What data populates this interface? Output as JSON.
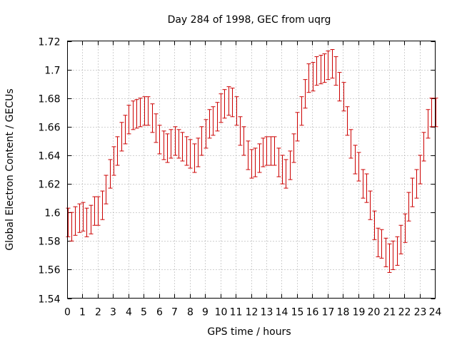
{
  "chart_data": {
    "type": "scatter",
    "title": "Day 284 of 1998, GEC from uqrg",
    "xlabel": "GPS time / hours",
    "ylabel": "Global Electron Content / GECUs",
    "xlim": [
      0,
      24
    ],
    "ylim": [
      1.54,
      1.72
    ],
    "x_ticks": [
      0,
      1,
      2,
      3,
      4,
      5,
      6,
      7,
      8,
      9,
      10,
      11,
      12,
      13,
      14,
      15,
      16,
      17,
      18,
      19,
      20,
      21,
      22,
      23,
      24
    ],
    "x_tick_labels": [
      "0",
      "1",
      "2",
      "3",
      "4",
      "5",
      "6",
      "7",
      "8",
      "9",
      "10",
      "11",
      "12",
      "13",
      "14",
      "15",
      "16",
      "17",
      "18",
      "19",
      "20",
      "21",
      "22",
      "23",
      "24"
    ],
    "y_ticks": [
      1.54,
      1.56,
      1.58,
      1.6,
      1.62,
      1.64,
      1.66,
      1.68,
      1.7,
      1.72
    ],
    "y_tick_labels": [
      "1.54",
      "1.56",
      "1.58",
      "1.6",
      "1.62",
      "1.64",
      "1.66",
      "1.68",
      "1.7",
      "1.72"
    ],
    "grid": true,
    "series_color": "#cc0000",
    "error": 0.01,
    "x": [
      0.0,
      0.25,
      0.5,
      0.75,
      1.0,
      1.25,
      1.5,
      1.75,
      2.0,
      2.25,
      2.5,
      2.75,
      3.0,
      3.25,
      3.5,
      3.75,
      4.0,
      4.25,
      4.5,
      4.75,
      5.0,
      5.25,
      5.5,
      5.75,
      6.0,
      6.25,
      6.5,
      6.75,
      7.0,
      7.25,
      7.5,
      7.75,
      8.0,
      8.25,
      8.5,
      8.75,
      9.0,
      9.25,
      9.5,
      9.75,
      10.0,
      10.25,
      10.5,
      10.75,
      11.0,
      11.25,
      11.5,
      11.75,
      12.0,
      12.25,
      12.5,
      12.75,
      13.0,
      13.25,
      13.5,
      13.75,
      14.0,
      14.25,
      14.5,
      14.75,
      15.0,
      15.25,
      15.5,
      15.75,
      16.0,
      16.25,
      16.5,
      16.75,
      17.0,
      17.25,
      17.5,
      17.75,
      18.0,
      18.25,
      18.5,
      18.75,
      19.0,
      19.25,
      19.5,
      19.75,
      20.0,
      20.25,
      20.5,
      20.75,
      21.0,
      21.25,
      21.5,
      21.75,
      22.0,
      22.25,
      22.5,
      22.75,
      23.0,
      23.25,
      23.5,
      23.75,
      24.0
    ],
    "y": [
      1.593,
      1.59,
      1.594,
      1.596,
      1.597,
      1.593,
      1.595,
      1.601,
      1.601,
      1.605,
      1.616,
      1.627,
      1.636,
      1.643,
      1.653,
      1.658,
      1.665,
      1.668,
      1.669,
      1.67,
      1.671,
      1.671,
      1.666,
      1.659,
      1.651,
      1.647,
      1.645,
      1.648,
      1.65,
      1.648,
      1.646,
      1.643,
      1.641,
      1.638,
      1.642,
      1.65,
      1.655,
      1.662,
      1.664,
      1.667,
      1.673,
      1.676,
      1.678,
      1.677,
      1.671,
      1.657,
      1.65,
      1.64,
      1.634,
      1.635,
      1.638,
      1.642,
      1.643,
      1.643,
      1.643,
      1.635,
      1.63,
      1.627,
      1.633,
      1.645,
      1.66,
      1.671,
      1.683,
      1.694,
      1.695,
      1.699,
      1.7,
      1.701,
      1.703,
      1.704,
      1.699,
      1.688,
      1.681,
      1.664,
      1.648,
      1.637,
      1.632,
      1.62,
      1.617,
      1.605,
      1.591,
      1.579,
      1.578,
      1.572,
      1.568,
      1.57,
      1.573,
      1.581,
      1.589,
      1.604,
      1.614,
      1.62,
      1.63,
      1.646,
      1.662,
      1.67,
      1.67
    ]
  }
}
